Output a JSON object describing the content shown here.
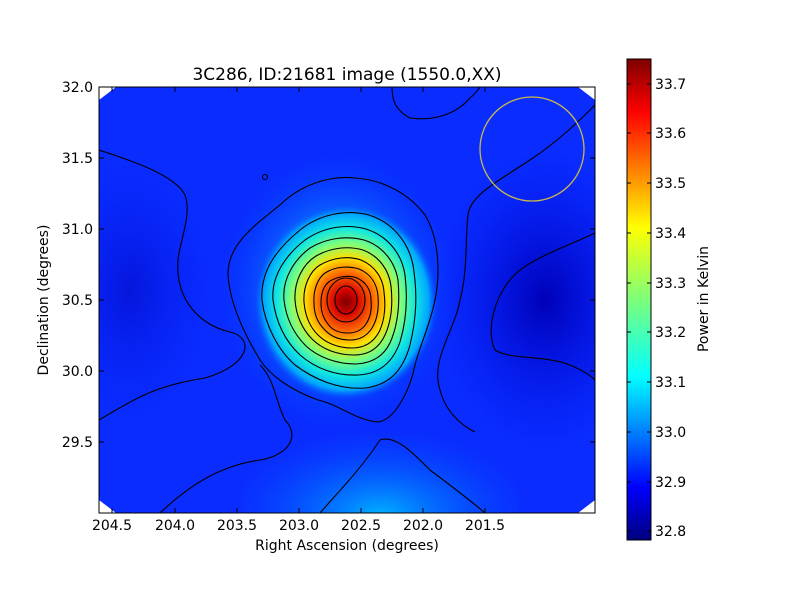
{
  "chart_data": {
    "type": "heatmap",
    "title": "3C286, ID:21681 image (1550.0,XX)",
    "xlabel": "Right Ascension (degrees)",
    "ylabel": "Declination (degrees)",
    "x_ticks": [
      "204.5",
      "204.0",
      "203.5",
      "203.0",
      "202.5",
      "202.0",
      "201.5"
    ],
    "y_ticks": [
      "29.5",
      "30.0",
      "30.5",
      "31.0",
      "31.5",
      "32.0"
    ],
    "xlim": [
      204.6,
      201.05
    ],
    "ylim": [
      29.0,
      32.0
    ],
    "colorbar": {
      "label": "Power in Kelvin",
      "range": [
        32.78,
        33.75
      ],
      "ticks": [
        "32.8",
        "32.9",
        "33.0",
        "33.1",
        "33.2",
        "33.3",
        "33.4",
        "33.5",
        "33.6",
        "33.7"
      ],
      "colormap": "jet"
    },
    "peak": {
      "ra": 202.78,
      "dec": 30.5,
      "value": 33.74
    },
    "beam_circle": {
      "ra": 201.48,
      "dec": 31.56,
      "color": "#c8b84a"
    },
    "contours": "black"
  }
}
